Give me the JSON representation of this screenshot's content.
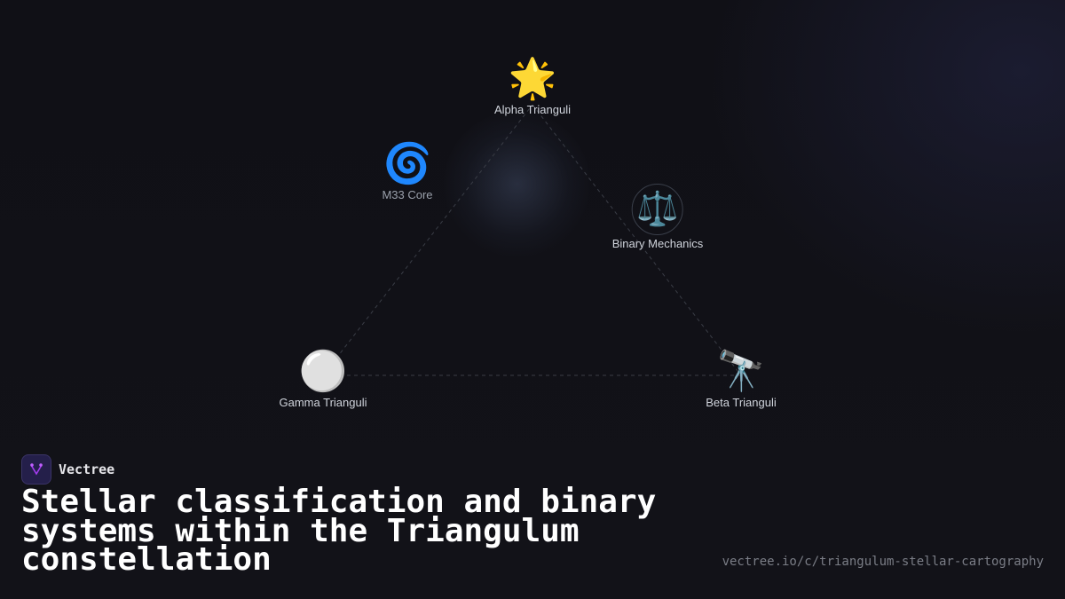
{
  "nodes": {
    "alpha": {
      "label": "Alpha Trianguli",
      "icon": "🌟"
    },
    "m33": {
      "label": "M33 Core",
      "icon": "🌀"
    },
    "binary": {
      "label": "Binary Mechanics",
      "icon": "⚖️"
    },
    "gamma": {
      "label": "Gamma Trianguli",
      "icon": "⚪"
    },
    "beta": {
      "label": "Beta Trianguli",
      "icon": "🔭"
    }
  },
  "edges": [
    [
      "alpha",
      "beta"
    ],
    [
      "beta",
      "gamma"
    ],
    [
      "gamma",
      "alpha"
    ]
  ],
  "brand": {
    "name": "Vectree",
    "accent": "#a43cf0"
  },
  "title": "Stellar classification and binary systems within the Triangulum constellation",
  "url": "vectree.io/c/triangulum-stellar-cartography"
}
